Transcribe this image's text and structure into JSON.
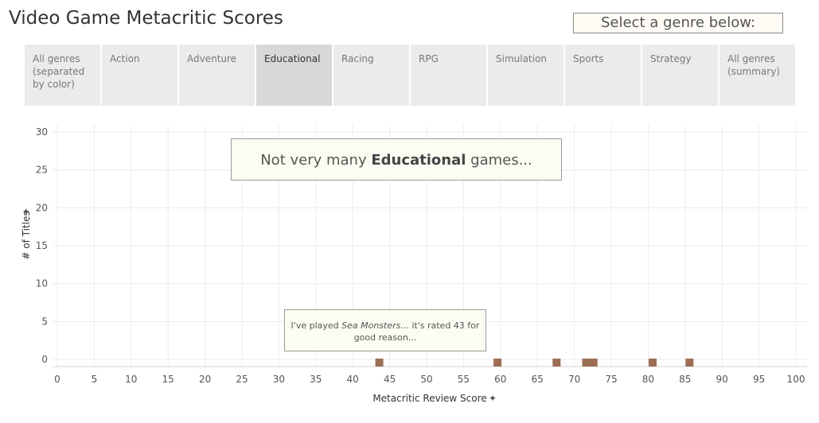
{
  "title": "Video Game Metacritic Scores",
  "selector_label": "Select a genre below:",
  "tabs": [
    {
      "label": "All genres (separated by color)",
      "active": false
    },
    {
      "label": "Action",
      "active": false
    },
    {
      "label": "Adventure",
      "active": false
    },
    {
      "label": "Educational",
      "active": true
    },
    {
      "label": "Racing",
      "active": false
    },
    {
      "label": "RPG",
      "active": false
    },
    {
      "label": "Simulation",
      "active": false
    },
    {
      "label": "Sports",
      "active": false
    },
    {
      "label": "Strategy",
      "active": false
    },
    {
      "label": "All genres (summary)",
      "active": false
    }
  ],
  "annotation_main": {
    "prefix": "Not very many ",
    "bold": "Educational",
    "suffix": " games..."
  },
  "annotation_note": {
    "prefix": "I've played ",
    "italic": "Sea Monsters",
    "suffix": "... it's rated 43 for good reason..."
  },
  "colors": {
    "marker": "#9c6f55",
    "grid": "#ececec",
    "tab_bg": "#ebebeb",
    "tab_active_bg": "#d8d8d8"
  },
  "chart_data": {
    "type": "scatter",
    "xlabel": "Metacritic Review Score",
    "ylabel": "# of Titles",
    "xlim": [
      0,
      100
    ],
    "ylim": [
      0,
      30
    ],
    "xticks": [
      0,
      5,
      10,
      15,
      20,
      25,
      30,
      35,
      40,
      45,
      50,
      55,
      60,
      65,
      70,
      75,
      80,
      85,
      90,
      95,
      100
    ],
    "yticks": [
      0,
      5,
      10,
      15,
      20,
      25,
      30
    ],
    "grid": true,
    "points": [
      {
        "x": 43,
        "y": 1
      },
      {
        "x": 59,
        "y": 1
      },
      {
        "x": 67,
        "y": 1
      },
      {
        "x": 71,
        "y": 1
      },
      {
        "x": 72,
        "y": 1
      },
      {
        "x": 80,
        "y": 1
      },
      {
        "x": 85,
        "y": 1
      }
    ]
  }
}
